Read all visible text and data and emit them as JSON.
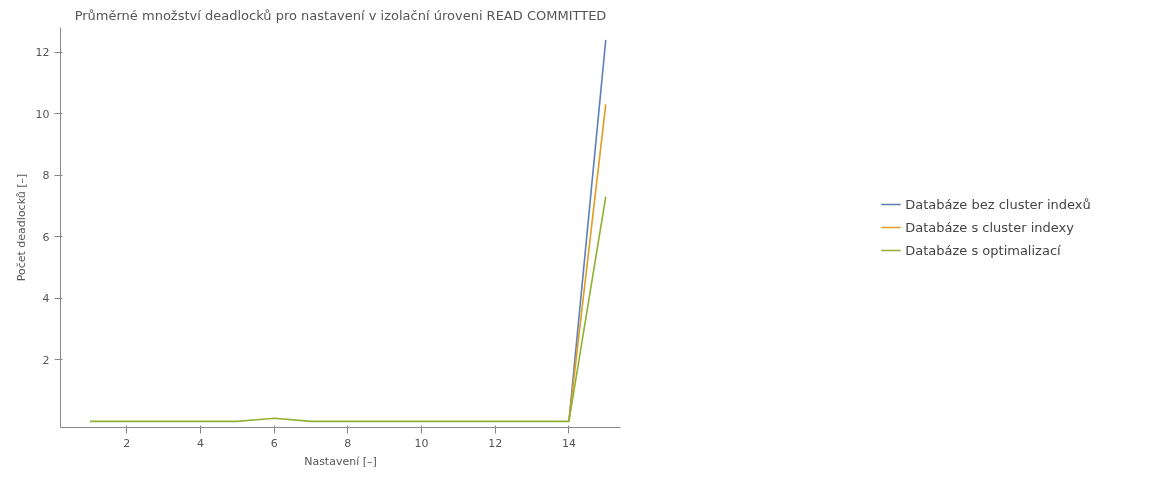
{
  "chart_data": {
    "type": "line",
    "title": "Průměrné množství deadlocků pro nastavení v izolační úroveni READ COMMITTED",
    "xlabel": "Nastavení [–]",
    "ylabel": "Počet deadlocků [–]",
    "x": [
      1,
      2,
      3,
      4,
      5,
      6,
      7,
      8,
      9,
      10,
      11,
      12,
      13,
      14,
      15
    ],
    "series": [
      {
        "name": "Databáze bez cluster indexů",
        "color": "#5e81b5",
        "values": [
          null,
          null,
          null,
          null,
          null,
          null,
          null,
          null,
          null,
          null,
          null,
          null,
          null,
          0,
          12.4
        ]
      },
      {
        "name": "Databáze s cluster indexy",
        "color": "#e19c24",
        "values": [
          null,
          null,
          null,
          null,
          null,
          null,
          null,
          null,
          null,
          null,
          null,
          null,
          null,
          0,
          10.3
        ]
      },
      {
        "name": "Databáze s optimalizací",
        "color": "#8fb032",
        "values": [
          0,
          0,
          0,
          0,
          0,
          0.1,
          0,
          0,
          0,
          0,
          0,
          0,
          0,
          0,
          7.3
        ]
      }
    ],
    "xlim": [
      0.2,
      15.4
    ],
    "ylim": [
      -0.2,
      12.8
    ],
    "xticks": [
      2,
      4,
      6,
      8,
      10,
      12,
      14
    ],
    "yticks": [
      2,
      4,
      6,
      8,
      10,
      12
    ],
    "legend": "right",
    "grid": false,
    "marker": "none",
    "line_style": "solid"
  }
}
